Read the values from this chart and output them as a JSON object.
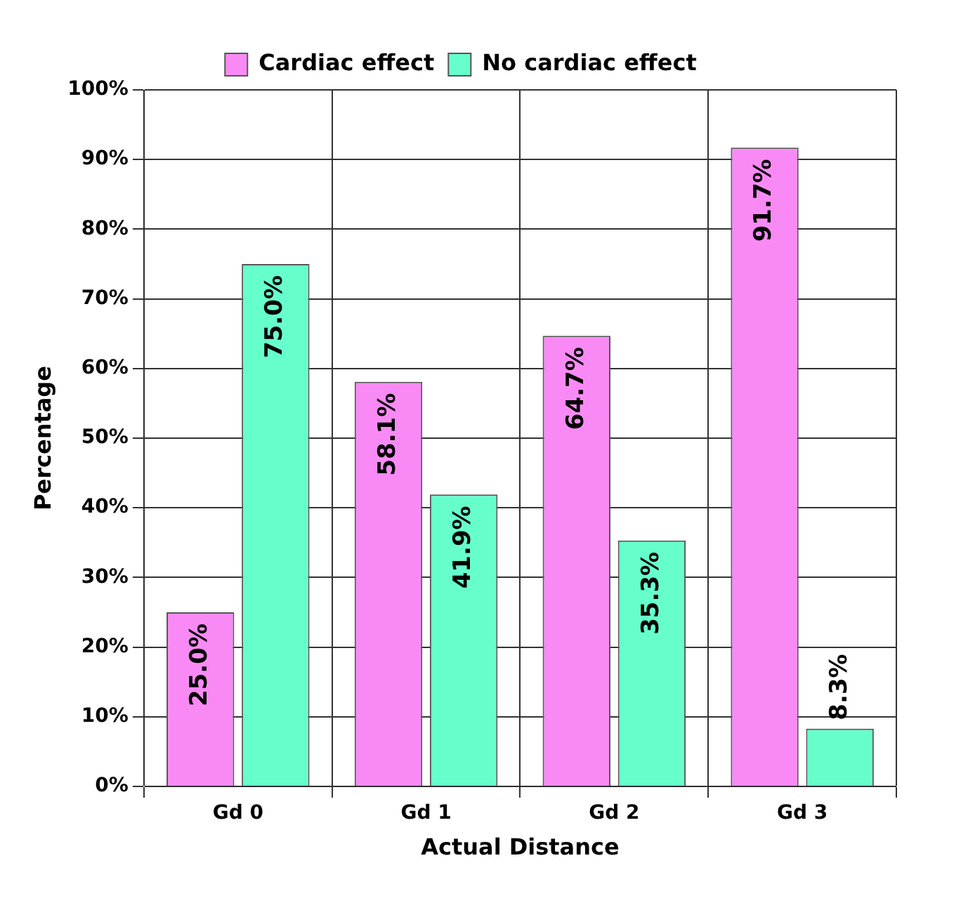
{
  "chart_data": {
    "type": "bar",
    "xlabel": "Actual Distance",
    "ylabel": "Percentage",
    "categories": [
      "Gd 0",
      "Gd 1",
      "Gd 2",
      "Gd 3"
    ],
    "series": [
      {
        "name": "Cardiac effect",
        "color": "#f98af5",
        "values": [
          25.0,
          58.1,
          64.7,
          91.7
        ],
        "value_labels": [
          "25.0%",
          "58.1%",
          "64.7%",
          "91.7%"
        ]
      },
      {
        "name": "No cardiac effect",
        "color": "#66ffcc",
        "values": [
          75.0,
          41.9,
          35.3,
          8.3
        ],
        "value_labels": [
          "75.0%",
          "41.9%",
          "35.3%",
          "8.3%"
        ]
      }
    ],
    "ylim": [
      0,
      100
    ],
    "yticks": [
      {
        "value": 0,
        "label": "0%"
      },
      {
        "value": 10,
        "label": "10%"
      },
      {
        "value": 20,
        "label": "20%"
      },
      {
        "value": 30,
        "label": "30%"
      },
      {
        "value": 40,
        "label": "40%"
      },
      {
        "value": 50,
        "label": "50%"
      },
      {
        "value": 60,
        "label": "60%"
      },
      {
        "value": 70,
        "label": "70%"
      },
      {
        "value": 80,
        "label": "80%"
      },
      {
        "value": 90,
        "label": "90%"
      },
      {
        "value": 100,
        "label": "100%"
      }
    ],
    "grid": true,
    "legend": "top"
  }
}
